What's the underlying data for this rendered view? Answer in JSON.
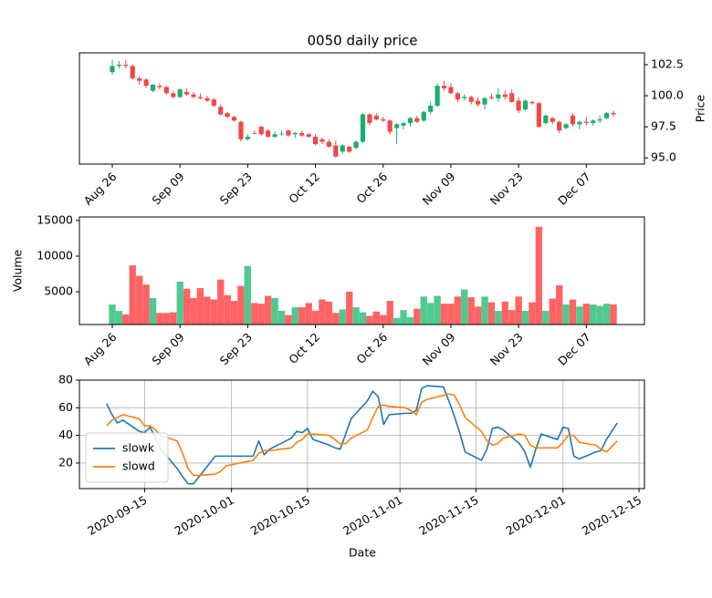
{
  "chart_data": [
    {
      "type": "candlestick",
      "title": "0050 daily price",
      "y_label": "Price",
      "categories": [
        "Aug 26",
        null,
        null,
        null,
        null,
        null,
        null,
        null,
        null,
        null,
        "Sep 09",
        null,
        null,
        null,
        null,
        null,
        null,
        null,
        null,
        null,
        "Sep 23",
        null,
        null,
        null,
        null,
        null,
        null,
        null,
        null,
        null,
        "Oct 12",
        null,
        null,
        null,
        null,
        null,
        null,
        null,
        null,
        null,
        "Oct 26",
        null,
        null,
        null,
        null,
        null,
        null,
        null,
        null,
        null,
        "Nov 09",
        null,
        null,
        null,
        null,
        null,
        null,
        null,
        null,
        null,
        "Nov 23",
        null,
        null,
        null,
        null,
        null,
        null,
        null,
        null,
        null,
        "Dec 07",
        null,
        null,
        null,
        null
      ],
      "open": [
        101.9,
        102.4,
        102.5,
        102.4,
        101.4,
        101.3,
        100.4,
        100.8,
        100.7,
        100.2,
        99.9,
        100.3,
        100.1,
        99.9,
        99.8,
        99.7,
        99.1,
        98.6,
        98.3,
        97.9,
        96.5,
        97.0,
        97.5,
        97.2,
        96.7,
        96.9,
        97.2,
        96.9,
        97.0,
        96.9,
        96.7,
        96.5,
        96.3,
        96.0,
        95.5,
        95.9,
        95.8,
        96.3,
        98.5,
        98.4,
        98.1,
        98.0,
        97.4,
        97.6,
        97.8,
        98.2,
        98.0,
        98.7,
        99.2,
        100.8,
        100.7,
        100.2,
        99.8,
        99.9,
        99.6,
        99.3,
        99.9,
        99.8,
        100.1,
        100.2,
        99.6,
        98.9,
        99.5,
        99.4,
        97.8,
        98.2,
        97.9,
        97.4,
        98.4,
        97.7,
        97.9,
        97.8,
        98.0,
        98.2,
        98.6
      ],
      "high": [
        102.9,
        102.8,
        102.9,
        102.5,
        101.6,
        101.4,
        100.9,
        101.0,
        100.8,
        100.4,
        100.6,
        100.6,
        100.3,
        100.2,
        100.0,
        99.8,
        99.3,
        98.7,
        98.4,
        98.0,
        96.9,
        97.2,
        97.6,
        97.3,
        97.1,
        97.2,
        97.3,
        97.1,
        97.2,
        97.0,
        96.9,
        96.6,
        96.5,
        96.4,
        96.1,
        96.0,
        96.4,
        98.6,
        98.6,
        98.6,
        98.3,
        98.1,
        97.8,
        97.9,
        98.3,
        98.4,
        98.8,
        99.5,
        101.0,
        101.2,
        101.0,
        100.3,
        100.1,
        100.0,
        99.9,
        99.9,
        100.2,
        100.6,
        100.4,
        100.5,
        99.9,
        99.7,
        99.6,
        99.5,
        98.5,
        98.3,
        98.0,
        97.8,
        98.6,
        98.0,
        98.3,
        98.1,
        98.4,
        98.7,
        98.8
      ],
      "low": [
        101.7,
        102.2,
        102.2,
        101.3,
        100.9,
        100.6,
        100.3,
        100.5,
        100.1,
        99.8,
        99.8,
        100.0,
        99.8,
        99.7,
        99.5,
        99.1,
        98.4,
        98.2,
        97.9,
        96.3,
        96.4,
        96.9,
        96.8,
        96.6,
        96.6,
        96.8,
        96.7,
        96.6,
        96.7,
        96.6,
        96.0,
        96.1,
        95.8,
        95.0,
        95.3,
        95.4,
        95.7,
        96.2,
        97.6,
        98.0,
        97.9,
        96.9,
        96.1,
        97.3,
        97.5,
        97.8,
        97.9,
        98.5,
        99.1,
        100.4,
        100.1,
        99.5,
        99.6,
        99.3,
        99.1,
        98.9,
        99.7,
        99.5,
        99.7,
        99.4,
        98.6,
        98.8,
        99.3,
        97.4,
        97.7,
        97.7,
        97.0,
        97.3,
        97.5,
        97.3,
        97.6,
        97.6,
        97.8,
        98.1,
        98.3
      ],
      "close": [
        102.4,
        102.5,
        102.4,
        101.4,
        101.2,
        100.8,
        100.9,
        100.7,
        100.2,
        99.9,
        100.5,
        100.1,
        99.9,
        99.8,
        99.6,
        99.2,
        98.5,
        98.3,
        98.0,
        96.5,
        96.7,
        96.95,
        96.9,
        96.7,
        96.9,
        96.95,
        96.8,
        97.0,
        96.8,
        96.7,
        96.1,
        96.3,
        95.9,
        95.1,
        96.0,
        95.5,
        96.3,
        98.5,
        97.8,
        98.1,
        98.0,
        97.1,
        97.7,
        97.8,
        98.2,
        97.9,
        98.7,
        99.2,
        100.8,
        100.6,
        100.2,
        99.7,
        99.9,
        99.5,
        99.3,
        99.8,
        99.8,
        100.1,
        99.9,
        99.5,
        98.8,
        99.6,
        99.4,
        97.5,
        98.4,
        97.9,
        97.2,
        97.7,
        97.7,
        97.9,
        97.8,
        98.0,
        98.1,
        98.6,
        98.5
      ],
      "up_color": "#1aaf6c",
      "down_color": "#ef4848",
      "ylim": [
        94.5,
        103.45
      ],
      "yticks": [
        {
          "value": 95,
          "label": "95.0"
        },
        97.5,
        {
          "value": 100,
          "label": "100.0"
        },
        102.5
      ]
    },
    {
      "type": "volume",
      "y_label": "Volume",
      "categories": [
        "Aug 26",
        null,
        null,
        null,
        null,
        null,
        null,
        null,
        null,
        null,
        "Sep 09",
        null,
        null,
        null,
        null,
        null,
        null,
        null,
        null,
        null,
        "Sep 23",
        null,
        null,
        null,
        null,
        null,
        null,
        null,
        null,
        null,
        "Oct 12",
        null,
        null,
        null,
        null,
        null,
        null,
        null,
        null,
        null,
        "Oct 26",
        null,
        null,
        null,
        null,
        null,
        null,
        null,
        null,
        null,
        "Nov 09",
        null,
        null,
        null,
        null,
        null,
        null,
        null,
        null,
        null,
        "Nov 23",
        null,
        null,
        null,
        null,
        null,
        null,
        null,
        null,
        null,
        "Dec 07",
        null,
        null,
        null,
        null
      ],
      "values": [
        3200,
        2300,
        1800,
        8700,
        7200,
        6000,
        4100,
        2000,
        2000,
        2100,
        6400,
        5400,
        4100,
        5500,
        4300,
        3900,
        6700,
        4500,
        3700,
        5800,
        8600,
        3400,
        3300,
        4400,
        4100,
        2300,
        1700,
        2800,
        2800,
        3400,
        2300,
        3900,
        3600,
        2000,
        2500,
        5000,
        2800,
        2100,
        1600,
        2200,
        1700,
        3700,
        1300,
        2400,
        1400,
        2600,
        4300,
        3400,
        4400,
        3300,
        3300,
        4300,
        5300,
        4200,
        2900,
        4300,
        3500,
        2300,
        3600,
        2400,
        4300,
        2300,
        3500,
        14100,
        2300,
        4000,
        5900,
        3200,
        3900,
        2900,
        3300,
        3200,
        3000,
        3300,
        3200
      ],
      "up_color": "#4fc98f",
      "down_color": "#ff6363",
      "ylim": [
        400,
        15500
      ],
      "yticks": [
        5000,
        10000,
        15000
      ]
    },
    {
      "type": "line",
      "x_label": "Date",
      "x": [
        "2020-09-08",
        "2020-09-09",
        "2020-09-10",
        "2020-09-11",
        "2020-09-14",
        "2020-09-15",
        "2020-09-16",
        "2020-09-17",
        "2020-09-18",
        "2020-09-21",
        "2020-09-22",
        "2020-09-23",
        "2020-09-24",
        "2020-09-25",
        "2020-09-28",
        "2020-09-29",
        "2020-09-30",
        "2020-10-05",
        "2020-10-06",
        "2020-10-07",
        "2020-10-08",
        "2020-10-12",
        "2020-10-13",
        "2020-10-14",
        "2020-10-15",
        "2020-10-16",
        "2020-10-19",
        "2020-10-20",
        "2020-10-21",
        "2020-10-22",
        "2020-10-23",
        "2020-10-26",
        "2020-10-27",
        "2020-10-28",
        "2020-10-29",
        "2020-10-30",
        "2020-11-02",
        "2020-11-03",
        "2020-11-04",
        "2020-11-05",
        "2020-11-06",
        "2020-11-09",
        "2020-11-10",
        "2020-11-11",
        "2020-11-12",
        "2020-11-13",
        "2020-11-16",
        "2020-11-17",
        "2020-11-18",
        "2020-11-19",
        "2020-11-20",
        "2020-11-23",
        "2020-11-24",
        "2020-11-25",
        "2020-11-26",
        "2020-11-27",
        "2020-11-30",
        "2020-12-01",
        "2020-12-02",
        "2020-12-03",
        "2020-12-04",
        "2020-12-07",
        "2020-12-08",
        "2020-12-09",
        "2020-12-10",
        "2020-12-11"
      ],
      "series": [
        {
          "name": "slowk",
          "color": "#1f77b4",
          "values": [
            63,
            55,
            49,
            51,
            43,
            42,
            46,
            38,
            30,
            16,
            10,
            5,
            5,
            10,
            25,
            25,
            25,
            25,
            36,
            26,
            30,
            38,
            43,
            42,
            45,
            37,
            33,
            31,
            30,
            41,
            52,
            65,
            72,
            68,
            48,
            55,
            56,
            56,
            58,
            74,
            76,
            75,
            65,
            54,
            42,
            28,
            22,
            30,
            45,
            46,
            44,
            34,
            28,
            17,
            30,
            41,
            37,
            46,
            45,
            25,
            23,
            28,
            29,
            37,
            43,
            49
          ]
        },
        {
          "name": "slowd",
          "color": "#ff7f0e",
          "values": [
            47,
            51,
            53,
            55,
            52,
            47,
            47,
            44,
            40,
            36,
            27,
            16,
            11,
            11,
            12,
            14,
            18,
            22,
            27,
            29,
            29,
            31,
            35,
            37,
            41,
            41,
            40,
            37,
            34,
            34,
            38,
            44,
            53,
            61,
            62,
            61,
            60,
            58,
            55,
            64,
            66,
            69,
            70,
            69,
            62,
            53,
            43,
            36,
            33,
            34,
            38,
            41,
            40,
            33,
            31,
            31,
            31,
            35,
            40,
            40,
            35,
            33,
            30,
            28,
            32,
            36
          ]
        }
      ],
      "xlim": [
        "2020-09-03",
        "2020-12-16"
      ],
      "xticks": [
        "2020-09-15",
        "2020-10-01",
        "2020-10-15",
        "2020-11-01",
        "2020-11-15",
        "2020-12-01",
        "2020-12-15"
      ],
      "ylim": [
        1.5,
        80
      ],
      "yticks": [
        20,
        40,
        60,
        80
      ],
      "grid": true,
      "legend": "lower left"
    }
  ]
}
